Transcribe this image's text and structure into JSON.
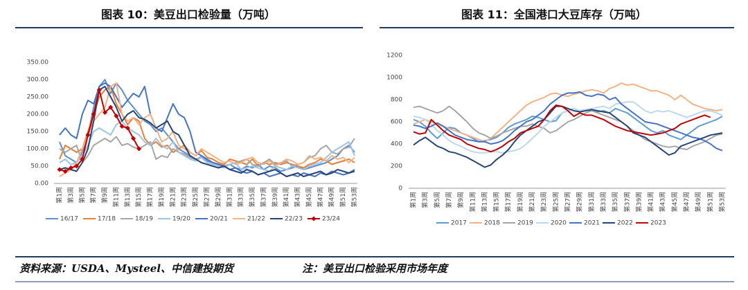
{
  "chart_data": [
    {
      "type": "line",
      "title": "图表 10：美豆出口检验量（万吨）",
      "categories": [
        "第1周",
        null,
        "第3周",
        null,
        "第5周",
        null,
        "第7周",
        null,
        "第9周",
        null,
        "第11周",
        null,
        "第13周",
        null,
        "第15周",
        null,
        "第17周",
        null,
        "第19周",
        null,
        "第21周",
        null,
        "第23周",
        null,
        "第25周",
        null,
        "第27周",
        null,
        "第29周",
        null,
        "第31周",
        null,
        "第33周",
        null,
        "第35周",
        null,
        "第37周",
        null,
        "第39周",
        null,
        "第41周",
        null,
        "第43周",
        null,
        "第45周",
        null,
        "第47周",
        null,
        "第49周",
        null,
        "第51周",
        null,
        "第53周"
      ],
      "ylim": [
        0,
        350
      ],
      "yticks": [
        {
          "value": 0,
          "label": "0.00"
        },
        {
          "value": 50,
          "label": "50.00"
        },
        {
          "value": 100,
          "label": "100.00"
        },
        {
          "value": 150,
          "label": "150.00"
        },
        {
          "value": 200,
          "label": "200.00"
        },
        {
          "value": 250,
          "label": "250.00"
        },
        {
          "value": 300,
          "label": "300.00"
        },
        {
          "value": 350,
          "label": "350.00"
        }
      ],
      "grid": false,
      "legend": "bottom",
      "series": [
        {
          "name": "16/17",
          "color": "#5b8fd0",
          "values": [
            120,
            80,
            70,
            60,
            90,
            140,
            220,
            280,
            300,
            260,
            290,
            270,
            240,
            220,
            200,
            180,
            170,
            150,
            160,
            140,
            120,
            100,
            90,
            80,
            70,
            75,
            65,
            60,
            55,
            50,
            55,
            45,
            40,
            50,
            45,
            55,
            40,
            50,
            45,
            35,
            40,
            45,
            50,
            40,
            45,
            50,
            55,
            60,
            70,
            80,
            100,
            110,
            90
          ]
        },
        {
          "name": "17/18",
          "color": "#ed7d31",
          "values": [
            70,
            110,
            100,
            90,
            100,
            150,
            200,
            250,
            270,
            280,
            230,
            200,
            170,
            190,
            180,
            130,
            110,
            120,
            105,
            110,
            90,
            100,
            110,
            90,
            80,
            95,
            75,
            70,
            60,
            55,
            70,
            65,
            60,
            55,
            70,
            50,
            60,
            55,
            60,
            55,
            60,
            55,
            50,
            45,
            55,
            60,
            70,
            65,
            55,
            60,
            65,
            70,
            60
          ]
        },
        {
          "name": "18/19",
          "color": "#a5a5a5",
          "values": [
            100,
            90,
            100,
            110,
            60,
            80,
            110,
            120,
            130,
            120,
            135,
            110,
            115,
            105,
            100,
            110,
            120,
            70,
            80,
            75,
            100,
            90,
            85,
            75,
            65,
            80,
            70,
            60,
            55,
            50,
            55,
            60,
            65,
            70,
            55,
            50,
            60,
            70,
            55,
            60,
            65,
            50,
            55,
            60,
            75,
            80,
            100,
            110,
            90,
            85,
            100,
            105,
            130
          ]
        },
        {
          "name": "19/20",
          "color": "#9dc3e6",
          "values": [
            60,
            70,
            55,
            60,
            80,
            110,
            150,
            160,
            150,
            140,
            170,
            180,
            160,
            150,
            140,
            120,
            110,
            130,
            110,
            100,
            120,
            90,
            80,
            70,
            65,
            75,
            60,
            55,
            50,
            45,
            55,
            60,
            40,
            45,
            50,
            45,
            40,
            35,
            50,
            45,
            40,
            50,
            45,
            40,
            50,
            55,
            60,
            75,
            90,
            100,
            110,
            120,
            80
          ]
        },
        {
          "name": "20/21",
          "color": "#4472c4",
          "values": [
            140,
            160,
            140,
            130,
            200,
            240,
            230,
            280,
            290,
            280,
            250,
            220,
            240,
            260,
            250,
            280,
            200,
            160,
            150,
            190,
            230,
            200,
            190,
            150,
            90,
            80,
            70,
            60,
            55,
            50,
            40,
            45,
            35,
            30,
            35,
            25,
            30,
            20,
            25,
            30,
            20,
            25,
            20,
            30,
            25,
            20,
            30,
            25,
            35,
            30,
            25,
            30,
            40
          ]
        },
        {
          "name": "21/22",
          "color": "#f4b183",
          "values": [
            20,
            30,
            40,
            60,
            100,
            140,
            180,
            200,
            220,
            280,
            290,
            200,
            180,
            190,
            170,
            190,
            200,
            160,
            120,
            130,
            150,
            110,
            100,
            90,
            80,
            100,
            90,
            80,
            70,
            60,
            65,
            55,
            60,
            70,
            75,
            60,
            55,
            65,
            50,
            60,
            70,
            65,
            55,
            60,
            80,
            70,
            75,
            65,
            80,
            70,
            75,
            60,
            75
          ]
        },
        {
          "name": "22/23",
          "color": "#264478",
          "values": [
            40,
            45,
            40,
            35,
            60,
            100,
            180,
            270,
            280,
            250,
            220,
            180,
            200,
            210,
            190,
            185,
            175,
            160,
            170,
            180,
            150,
            140,
            110,
            80,
            70,
            60,
            55,
            50,
            45,
            50,
            40,
            35,
            30,
            40,
            35,
            25,
            30,
            35,
            40,
            30,
            20,
            25,
            30,
            20,
            25,
            30,
            35,
            25,
            30,
            40,
            35,
            30,
            35
          ]
        },
        {
          "name": "23/24",
          "color": "#c00000",
          "marker": "diamond",
          "values": [
            40,
            35,
            45,
            50,
            70,
            140,
            200,
            270,
            205,
            220,
            195,
            165,
            160,
            130,
            100,
            null,
            null,
            null,
            null,
            null,
            null,
            null,
            null,
            null,
            null,
            null,
            null,
            null,
            null,
            null,
            null,
            null,
            null,
            null,
            null,
            null,
            null,
            null,
            null,
            null,
            null,
            null,
            null,
            null,
            null,
            null,
            null,
            null,
            null,
            null,
            null,
            null,
            null
          ]
        }
      ]
    },
    {
      "type": "line",
      "title": "图表 11：全国港口大豆库存（万吨）",
      "categories": [
        "第1周",
        null,
        "第3周",
        null,
        "第5周",
        null,
        "第7周",
        null,
        "第9周",
        null,
        "第11周",
        null,
        "第13周",
        null,
        "第15周",
        null,
        "第17周",
        null,
        "第19周",
        null,
        "第21周",
        null,
        "第23周",
        null,
        "第25周",
        null,
        "第27周",
        null,
        "第29周",
        null,
        "第31周",
        null,
        "第33周",
        null,
        "第35周",
        null,
        "第37周",
        null,
        "第39周",
        null,
        "第41周",
        null,
        "第43周",
        null,
        "第45周",
        null,
        "第47周",
        null,
        "第49周",
        null,
        "第51周",
        null,
        "第53周"
      ],
      "ylim": [
        0,
        1200
      ],
      "yticks": [
        0,
        200,
        400,
        600,
        800,
        1000,
        1200
      ],
      "grid": false,
      "legend": "bottom",
      "series": [
        {
          "name": "2017",
          "color": "#5b9bd5",
          "values": [
            620,
            600,
            560,
            500,
            450,
            500,
            550,
            540,
            500,
            480,
            450,
            420,
            430,
            440,
            460,
            500,
            550,
            580,
            600,
            620,
            650,
            640,
            620,
            600,
            610,
            680,
            700,
            720,
            700,
            710,
            700,
            690,
            700,
            680,
            720,
            700,
            680,
            640,
            600,
            560,
            520,
            500,
            520,
            480,
            460,
            440,
            480,
            520,
            560,
            580,
            600,
            620,
            650
          ]
        },
        {
          "name": "2018",
          "color": "#f4b183",
          "values": [
            580,
            600,
            620,
            600,
            580,
            560,
            540,
            520,
            500,
            480,
            460,
            440,
            420,
            450,
            500,
            550,
            600,
            650,
            700,
            750,
            780,
            800,
            820,
            850,
            860,
            840,
            830,
            850,
            860,
            880,
            890,
            880,
            860,
            900,
            920,
            950,
            930,
            940,
            920,
            900,
            880,
            880,
            860,
            840,
            800,
            840,
            800,
            760,
            740,
            720,
            710,
            700,
            710
          ]
        },
        {
          "name": "2019",
          "color": "#a5a5a5",
          "values": [
            730,
            740,
            720,
            700,
            680,
            700,
            740,
            700,
            650,
            600,
            540,
            500,
            480,
            450,
            470,
            500,
            520,
            540,
            560,
            560,
            580,
            560,
            540,
            500,
            520,
            560,
            600,
            620,
            650,
            680,
            700,
            680,
            660,
            640,
            620,
            600,
            560,
            520,
            480,
            440,
            420,
            400,
            380,
            370,
            380,
            360,
            350,
            380,
            400,
            420,
            450,
            480,
            490
          ]
        },
        {
          "name": "2020",
          "color": "#bdd7ee",
          "values": [
            650,
            640,
            620,
            580,
            520,
            480,
            430,
            400,
            380,
            350,
            330,
            320,
            320,
            330,
            330,
            320,
            330,
            340,
            360,
            400,
            450,
            500,
            560,
            600,
            640,
            680,
            700,
            720,
            700,
            710,
            720,
            730,
            740,
            720,
            760,
            770,
            780,
            780,
            740,
            700,
            680,
            700,
            690,
            700,
            680,
            660,
            640,
            660,
            680,
            700,
            700,
            680,
            660
          ]
        },
        {
          "name": "2021",
          "color": "#4472c4",
          "values": [
            570,
            560,
            540,
            560,
            590,
            560,
            520,
            480,
            460,
            440,
            430,
            420,
            420,
            400,
            410,
            430,
            470,
            520,
            560,
            600,
            620,
            660,
            700,
            760,
            800,
            840,
            860,
            860,
            870,
            840,
            830,
            850,
            840,
            800,
            820,
            760,
            720,
            680,
            640,
            600,
            590,
            580,
            560,
            540,
            520,
            500,
            480,
            460,
            450,
            430,
            400,
            360,
            340
          ]
        },
        {
          "name": "2022",
          "color": "#264478",
          "values": [
            390,
            430,
            460,
            420,
            380,
            360,
            330,
            320,
            300,
            280,
            250,
            220,
            190,
            210,
            260,
            300,
            350,
            420,
            480,
            520,
            560,
            600,
            620,
            680,
            740,
            740,
            720,
            700,
            690,
            700,
            710,
            700,
            690,
            680,
            640,
            600,
            560,
            500,
            480,
            460,
            420,
            380,
            340,
            300,
            320,
            380,
            400,
            420,
            440,
            460,
            480,
            490,
            500
          ]
        },
        {
          "name": "2023",
          "color": "#c00000",
          "values": [
            510,
            490,
            500,
            620,
            570,
            520,
            480,
            460,
            440,
            400,
            380,
            360,
            350,
            330,
            350,
            380,
            420,
            450,
            500,
            520,
            540,
            560,
            620,
            700,
            750,
            740,
            700,
            650,
            680,
            660,
            660,
            640,
            620,
            590,
            560,
            540,
            520,
            510,
            500,
            490,
            480,
            490,
            500,
            520,
            540,
            580,
            600,
            620,
            640,
            660,
            640,
            null,
            null
          ]
        }
      ]
    }
  ],
  "footer": {
    "source": "资料来源：USDA、Mysteel、中信建投期货",
    "note": "注：美豆出口检验采用市场年度"
  }
}
